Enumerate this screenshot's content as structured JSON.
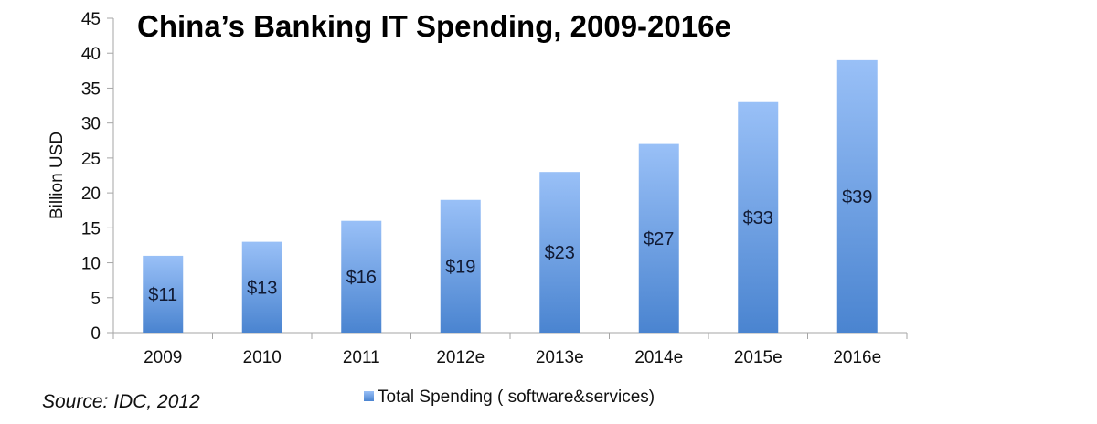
{
  "chart_data": {
    "type": "bar",
    "title": "China’s Banking IT Spending, 2009-2016e",
    "xlabel": "",
    "ylabel": "Billion USD",
    "categories": [
      "2009",
      "2010",
      "2011",
      "2012e",
      "2013e",
      "2014e",
      "2015e",
      "2016e"
    ],
    "series": [
      {
        "name": "Total Spending ( software&services)",
        "values": [
          11,
          13,
          16,
          19,
          23,
          27,
          33,
          39
        ],
        "data_labels": [
          "$11",
          "$13",
          "$16",
          "$19",
          "$23",
          "$27",
          "$33",
          "$39"
        ],
        "color_top": "#99c0f7",
        "color_bottom": "#4a84d0"
      }
    ],
    "ylim": [
      0,
      45
    ],
    "yticks": [
      0,
      5,
      10,
      15,
      20,
      25,
      30,
      35,
      40,
      45
    ],
    "grid": false,
    "legend": "bottom-center",
    "annotations": [
      "Source: IDC, 2012"
    ]
  },
  "source_text": "Source: IDC, 2012"
}
